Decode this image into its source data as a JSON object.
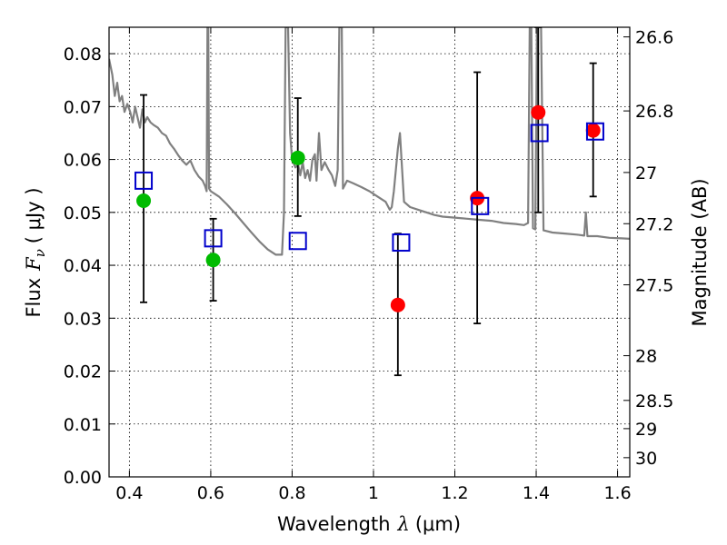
{
  "chart_data": {
    "type": "scatter",
    "xlabel": "Wavelength",
    "xlabel_symbol": "λ",
    "xlabel_unit": "(μm)",
    "ylabel": "Flux",
    "ylabel_symbol": "F",
    "ylabel_subscript": "ν",
    "ylabel_unit": "( μJy )",
    "y2label": "Magnitude (AB)",
    "xlim": [
      0.35,
      1.63
    ],
    "ylim": [
      0.0,
      0.085
    ],
    "grid": true,
    "x_ticks": [
      {
        "value": 0.4,
        "label": "0.4"
      },
      {
        "value": 0.6,
        "label": "0.6"
      },
      {
        "value": 0.8,
        "label": "0.8"
      },
      {
        "value": 1.0,
        "label": "1"
      },
      {
        "value": 1.2,
        "label": "1.2"
      },
      {
        "value": 1.4,
        "label": "1.4"
      },
      {
        "value": 1.6,
        "label": "1.6"
      }
    ],
    "y_ticks": [
      {
        "value": 0.0,
        "label": "0.00"
      },
      {
        "value": 0.01,
        "label": "0.01"
      },
      {
        "value": 0.02,
        "label": "0.02"
      },
      {
        "value": 0.03,
        "label": "0.03"
      },
      {
        "value": 0.04,
        "label": "0.04"
      },
      {
        "value": 0.05,
        "label": "0.05"
      },
      {
        "value": 0.06,
        "label": "0.06"
      },
      {
        "value": 0.07,
        "label": "0.07"
      },
      {
        "value": 0.08,
        "label": "0.08"
      }
    ],
    "y2_ticks": [
      {
        "mag": 26.6,
        "label": "26.6"
      },
      {
        "mag": 26.8,
        "label": "26.8"
      },
      {
        "mag": 27.0,
        "label": "27"
      },
      {
        "mag": 27.2,
        "label": "27.2"
      },
      {
        "mag": 27.5,
        "label": "27.5"
      },
      {
        "mag": 28.0,
        "label": "28"
      },
      {
        "mag": 28.5,
        "label": "28.5"
      },
      {
        "mag": 29.0,
        "label": "29"
      },
      {
        "mag": 30.0,
        "label": "30"
      }
    ],
    "observed_points": [
      {
        "x": 0.435,
        "y": 0.0522,
        "yerr_low": 0.033,
        "yerr_high": 0.0722,
        "color": "#00bb00"
      },
      {
        "x": 0.606,
        "y": 0.041,
        "yerr_low": 0.0333,
        "yerr_high": 0.0488,
        "color": "#00bb00"
      },
      {
        "x": 0.814,
        "y": 0.0603,
        "yerr_low": 0.0493,
        "yerr_high": 0.0716,
        "color": "#00bb00"
      },
      {
        "x": 1.06,
        "y": 0.0325,
        "yerr_low": 0.0192,
        "yerr_high": 0.046,
        "color": "#ff0000"
      },
      {
        "x": 1.255,
        "y": 0.0527,
        "yerr_low": 0.029,
        "yerr_high": 0.0765,
        "color": "#ff0000"
      },
      {
        "x": 1.405,
        "y": 0.0689,
        "yerr_low": 0.05,
        "yerr_high": 0.085,
        "color": "#ff0000"
      },
      {
        "x": 1.54,
        "y": 0.0655,
        "yerr_low": 0.053,
        "yerr_high": 0.0782,
        "color": "#ff0000"
      }
    ],
    "model_points": [
      {
        "x": 0.435,
        "y": 0.056
      },
      {
        "x": 0.606,
        "y": 0.0451
      },
      {
        "x": 0.814,
        "y": 0.0446
      },
      {
        "x": 1.068,
        "y": 0.0443
      },
      {
        "x": 1.262,
        "y": 0.0512
      },
      {
        "x": 1.408,
        "y": 0.065
      },
      {
        "x": 1.545,
        "y": 0.0653
      }
    ],
    "model_spectrum": [
      [
        0.35,
        0.079
      ],
      [
        0.358,
        0.076
      ],
      [
        0.364,
        0.072
      ],
      [
        0.37,
        0.0745
      ],
      [
        0.376,
        0.071
      ],
      [
        0.382,
        0.072
      ],
      [
        0.388,
        0.069
      ],
      [
        0.395,
        0.0705
      ],
      [
        0.402,
        0.069
      ],
      [
        0.408,
        0.067
      ],
      [
        0.414,
        0.07
      ],
      [
        0.42,
        0.068
      ],
      [
        0.426,
        0.066
      ],
      [
        0.432,
        0.0695
      ],
      [
        0.438,
        0.067
      ],
      [
        0.444,
        0.068
      ],
      [
        0.452,
        0.067
      ],
      [
        0.46,
        0.0665
      ],
      [
        0.47,
        0.066
      ],
      [
        0.48,
        0.065
      ],
      [
        0.49,
        0.0645
      ],
      [
        0.5,
        0.063
      ],
      [
        0.51,
        0.062
      ],
      [
        0.52,
        0.0608
      ],
      [
        0.53,
        0.0598
      ],
      [
        0.54,
        0.059
      ],
      [
        0.55,
        0.0598
      ],
      [
        0.56,
        0.058
      ],
      [
        0.57,
        0.0568
      ],
      [
        0.58,
        0.056
      ],
      [
        0.586,
        0.055
      ],
      [
        0.59,
        0.054
      ],
      [
        0.592,
        0.085
      ],
      [
        0.594,
        0.085
      ],
      [
        0.596,
        0.0545
      ],
      [
        0.6,
        0.054
      ],
      [
        0.61,
        0.0535
      ],
      [
        0.62,
        0.053
      ],
      [
        0.64,
        0.0515
      ],
      [
        0.66,
        0.0498
      ],
      [
        0.68,
        0.048
      ],
      [
        0.7,
        0.0462
      ],
      [
        0.72,
        0.0445
      ],
      [
        0.74,
        0.043
      ],
      [
        0.76,
        0.042
      ],
      [
        0.775,
        0.042
      ],
      [
        0.78,
        0.05
      ],
      [
        0.784,
        0.085
      ],
      [
        0.79,
        0.085
      ],
      [
        0.795,
        0.065
      ],
      [
        0.8,
        0.06
      ],
      [
        0.808,
        0.0585
      ],
      [
        0.815,
        0.059
      ],
      [
        0.82,
        0.057
      ],
      [
        0.826,
        0.0595
      ],
      [
        0.832,
        0.0565
      ],
      [
        0.838,
        0.058
      ],
      [
        0.844,
        0.056
      ],
      [
        0.85,
        0.06
      ],
      [
        0.856,
        0.061
      ],
      [
        0.86,
        0.056
      ],
      [
        0.866,
        0.065
      ],
      [
        0.872,
        0.058
      ],
      [
        0.88,
        0.0595
      ],
      [
        0.89,
        0.058
      ],
      [
        0.898,
        0.057
      ],
      [
        0.906,
        0.055
      ],
      [
        0.912,
        0.058
      ],
      [
        0.916,
        0.085
      ],
      [
        0.922,
        0.085
      ],
      [
        0.925,
        0.0545
      ],
      [
        0.935,
        0.056
      ],
      [
        0.95,
        0.0555
      ],
      [
        0.97,
        0.0548
      ],
      [
        0.99,
        0.054
      ],
      [
        1.01,
        0.053
      ],
      [
        1.03,
        0.052
      ],
      [
        1.04,
        0.0505
      ],
      [
        1.045,
        0.051
      ],
      [
        1.05,
        0.054
      ],
      [
        1.055,
        0.058
      ],
      [
        1.06,
        0.062
      ],
      [
        1.065,
        0.065
      ],
      [
        1.075,
        0.052
      ],
      [
        1.09,
        0.051
      ],
      [
        1.11,
        0.0505
      ],
      [
        1.13,
        0.05
      ],
      [
        1.15,
        0.0495
      ],
      [
        1.17,
        0.0492
      ],
      [
        1.2,
        0.049
      ],
      [
        1.23,
        0.0488
      ],
      [
        1.26,
        0.0486
      ],
      [
        1.29,
        0.0484
      ],
      [
        1.32,
        0.048
      ],
      [
        1.35,
        0.0478
      ],
      [
        1.37,
        0.0476
      ],
      [
        1.38,
        0.048
      ],
      [
        1.384,
        0.085
      ],
      [
        1.388,
        0.085
      ],
      [
        1.392,
        0.047
      ],
      [
        1.398,
        0.0468
      ],
      [
        1.402,
        0.085
      ],
      [
        1.412,
        0.085
      ],
      [
        1.418,
        0.0466
      ],
      [
        1.44,
        0.0462
      ],
      [
        1.47,
        0.046
      ],
      [
        1.5,
        0.0458
      ],
      [
        1.518,
        0.0456
      ],
      [
        1.522,
        0.05
      ],
      [
        1.526,
        0.0455
      ],
      [
        1.55,
        0.0455
      ],
      [
        1.58,
        0.0452
      ],
      [
        1.61,
        0.0451
      ],
      [
        1.63,
        0.045
      ]
    ],
    "colors": {
      "spectrum": "#808080",
      "model_marker": "#0000cc",
      "optical_points": "#00bb00",
      "nir_points": "#ff0000",
      "errorbar": "#000000"
    }
  }
}
